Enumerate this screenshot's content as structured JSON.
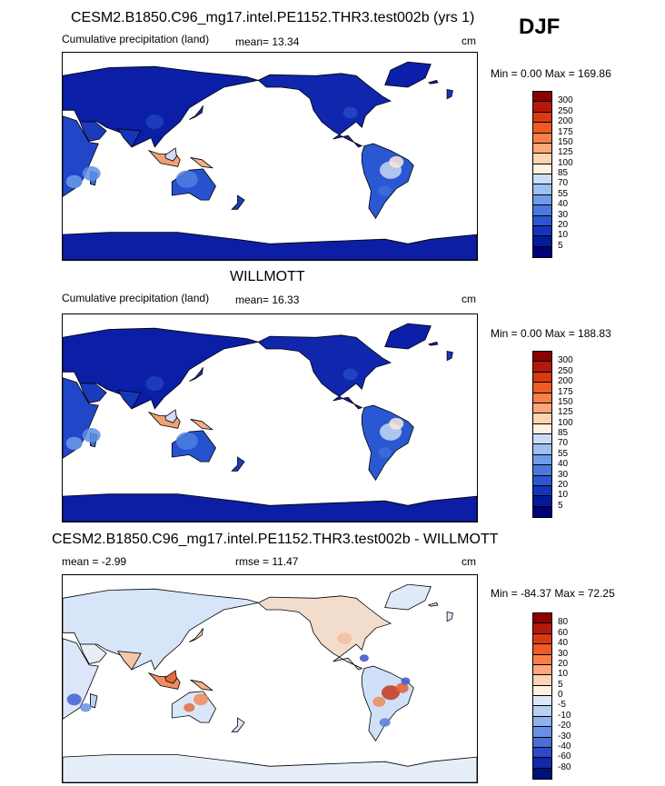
{
  "season": "DJF",
  "panels": [
    {
      "title": "CESM2.B1850.C96_mg17.intel.PE1152.THR3.test002b (yrs 1)",
      "left_label": "Cumulative precipitation (land)",
      "stat1": "mean=  13.34",
      "stat2": "",
      "units": "cm",
      "minmax": "Min =    0.00 Max = 169.86",
      "levels": [
        "300",
        "250",
        "200",
        "175",
        "150",
        "125",
        "100",
        "85",
        "70",
        "55",
        "40",
        "30",
        "20",
        "10",
        "5"
      ],
      "colors": [
        "#8c0000",
        "#b5180a",
        "#d83a12",
        "#f05a24",
        "#f7804a",
        "#fba77a",
        "#fdd3b2",
        "#fff0e0",
        "#c9ddf7",
        "#9dc0f2",
        "#6f9cea",
        "#4a78e0",
        "#2c56d2",
        "#1534bd",
        "#031a9a",
        "#00007a"
      ],
      "map_kind": "precip"
    },
    {
      "title": "WILLMOTT",
      "left_label": "Cumulative precipitation (land)",
      "stat1": "mean=  16.33",
      "stat2": "",
      "units": "cm",
      "minmax": "Min =    0.00 Max = 188.83",
      "levels": [
        "300",
        "250",
        "200",
        "175",
        "150",
        "125",
        "100",
        "85",
        "70",
        "55",
        "40",
        "30",
        "20",
        "10",
        "5"
      ],
      "colors": [
        "#8c0000",
        "#b5180a",
        "#d83a12",
        "#f05a24",
        "#f7804a",
        "#fba77a",
        "#fdd3b2",
        "#fff0e0",
        "#c9ddf7",
        "#9dc0f2",
        "#6f9cea",
        "#4a78e0",
        "#2c56d2",
        "#1534bd",
        "#031a9a",
        "#00007a"
      ],
      "map_kind": "precip"
    },
    {
      "title": "CESM2.B1850.C96_mg17.intel.PE1152.THR3.test002b - WILLMOTT",
      "left_label": "mean =  -2.99",
      "stat1": "rmse =  11.47",
      "stat2": "",
      "units": "cm",
      "minmax": "Min = -84.37 Max =  72.25",
      "levels": [
        "80",
        "60",
        "40",
        "30",
        "20",
        "10",
        "5",
        "0",
        "-5",
        "-10",
        "-20",
        "-30",
        "-40",
        "-60",
        "-80"
      ],
      "colors": [
        "#8c0000",
        "#b5180a",
        "#d83a12",
        "#f05a24",
        "#f7804a",
        "#fba77a",
        "#fdd3b2",
        "#fff0e0",
        "#dce8f8",
        "#b8d0f4",
        "#8fb0ec",
        "#6a8fe4",
        "#4a6ed8",
        "#2a4bc8",
        "#1228a8",
        "#00107a"
      ],
      "map_kind": "diff"
    }
  ]
}
